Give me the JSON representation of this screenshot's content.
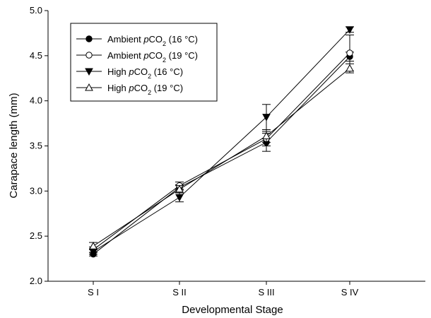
{
  "chart_data": {
    "type": "line",
    "xlabel": "Developmental Stage",
    "ylabel": "Carapace length (mm)",
    "categories": [
      "S I",
      "S II",
      "S III",
      "S IV"
    ],
    "ylim": [
      2.0,
      5.0
    ],
    "yticks": [
      "2.0",
      "2.5",
      "3.0",
      "3.5",
      "4.0",
      "4.5",
      "5.0"
    ],
    "grid": false,
    "legend_position": "top-left",
    "series": [
      {
        "name": "Ambient pCO2 (16 °C)",
        "label_pre": "Ambient ",
        "label_italic": "p",
        "label_main": "CO",
        "label_sub": "2",
        "label_post": " (16 °C)",
        "marker": "circle-filled",
        "values": [
          2.3,
          3.04,
          3.54,
          4.49
        ],
        "errors": [
          0.02,
          0.03,
          0.1,
          0.05
        ]
      },
      {
        "name": "Ambient pCO2 (19 °C)",
        "label_pre": "Ambient ",
        "label_italic": "p",
        "label_main": "CO",
        "label_sub": "2",
        "label_post": " (19 °C)",
        "marker": "circle-open",
        "values": [
          2.35,
          3.06,
          3.58,
          4.53
        ],
        "errors": [
          0.03,
          0.04,
          0.08,
          0.2
        ]
      },
      {
        "name": "High pCO2 (16 °C)",
        "label_pre": "High ",
        "label_italic": "p",
        "label_main": "CO",
        "label_sub": "2",
        "label_post": " (16 °C)",
        "marker": "triangle-down-filled",
        "values": [
          2.33,
          2.93,
          3.82,
          4.79
        ],
        "errors": [
          0.03,
          0.05,
          0.14,
          0.03
        ]
      },
      {
        "name": "High pCO2 (19 °C)",
        "label_pre": "High ",
        "label_italic": "p",
        "label_main": "CO",
        "label_sub": "2",
        "label_post": " (19 °C)",
        "marker": "triangle-up-open",
        "values": [
          2.39,
          3.02,
          3.61,
          4.36
        ],
        "errors": [
          0.04,
          0.04,
          0.07,
          0.05
        ]
      }
    ]
  }
}
